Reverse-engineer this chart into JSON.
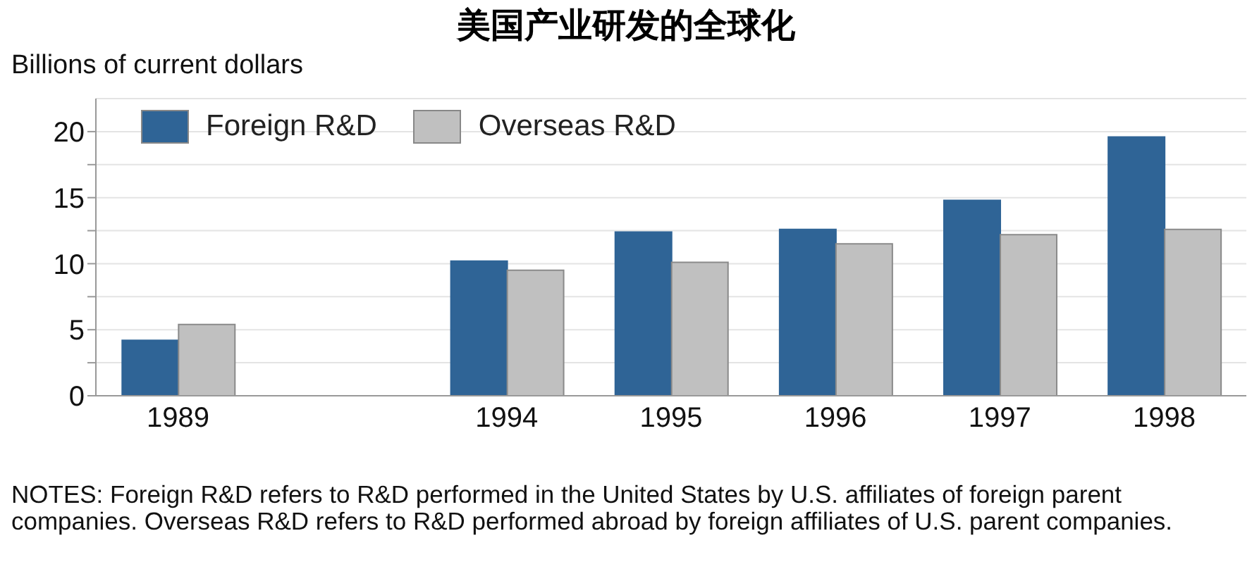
{
  "chart_data": {
    "type": "bar",
    "title": "美国产业研发的全球化",
    "ylabel": "Billions of current dollars",
    "categories": [
      "1989",
      null,
      "1994",
      "1995",
      "1996",
      "1997",
      "1998"
    ],
    "series": [
      {
        "name": "Foreign R&D",
        "color": "#2f6496",
        "values": [
          4.2,
          null,
          10.2,
          12.4,
          12.6,
          14.8,
          19.6
        ]
      },
      {
        "name": "Overseas R&D",
        "color": "#c0c0c0",
        "values": [
          5.4,
          null,
          9.5,
          10.1,
          11.5,
          12.2,
          12.6
        ]
      }
    ],
    "ylim": [
      0,
      22.5
    ],
    "yticks": [
      0,
      {
        "value": 2.5,
        "label": null
      },
      5,
      {
        "value": 7.5,
        "label": null
      },
      10,
      {
        "value": 12.5,
        "label": null
      },
      15,
      {
        "value": 17.5,
        "label": null
      },
      20
    ],
    "grid": "y",
    "legend": "top left",
    "annotations": [
      "NOTES: Foreign R&D refers to R&D performed in the United States by U.S. affiliates of foreign parent companies.  Overseas R&D refers to R&D performed abroad by foreign affiliates of U.S. parent companies."
    ]
  }
}
